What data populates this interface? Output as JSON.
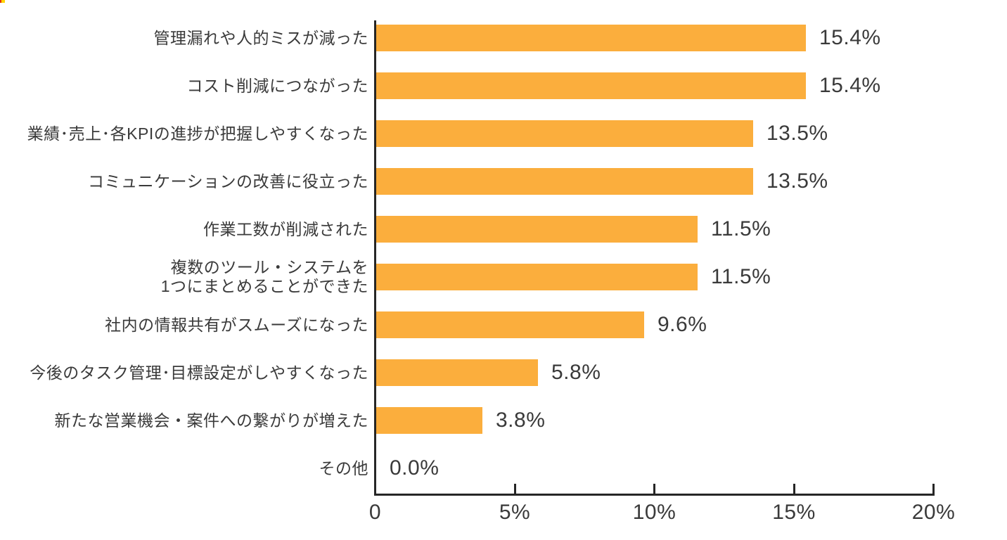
{
  "chart_data": {
    "type": "bar",
    "orientation": "horizontal",
    "title": "",
    "xlabel": "",
    "ylabel": "",
    "categories": [
      "管理漏れや人的ミスが減った",
      "コスト削減につながった",
      "業績･売上･各KPIの進捗が把握しやすくなった",
      "コミュニケーションの改善に役立った",
      "作業工数が削減された",
      "複数のツール・システムを\n1つにまとめることができた",
      "社内の情報共有がスムーズになった",
      "今後のタスク管理･目標設定がしやすくなった",
      "新たな営業機会・案件への繋がりが増えた",
      "その他"
    ],
    "values": [
      15.4,
      15.4,
      13.5,
      13.5,
      11.5,
      11.5,
      9.6,
      5.8,
      3.8,
      0.0
    ],
    "value_labels": [
      "15.4%",
      "15.4%",
      "13.5%",
      "13.5%",
      "11.5%",
      "11.5%",
      "9.6%",
      "5.8%",
      "3.8%",
      "0.0%"
    ],
    "xlim": [
      0,
      20
    ],
    "x_ticks": [
      {
        "value": 0,
        "label": "0"
      },
      {
        "value": 5,
        "label": "5%"
      },
      {
        "value": 10,
        "label": "10%"
      },
      {
        "value": 15,
        "label": "15%"
      },
      {
        "value": 20,
        "label": "20%"
      }
    ],
    "grid": false,
    "legend": null,
    "colors": {
      "bar": "#FBAE3D",
      "axis": "#262626",
      "text": "#3A3A3A",
      "background": "#FFFFFF"
    }
  }
}
